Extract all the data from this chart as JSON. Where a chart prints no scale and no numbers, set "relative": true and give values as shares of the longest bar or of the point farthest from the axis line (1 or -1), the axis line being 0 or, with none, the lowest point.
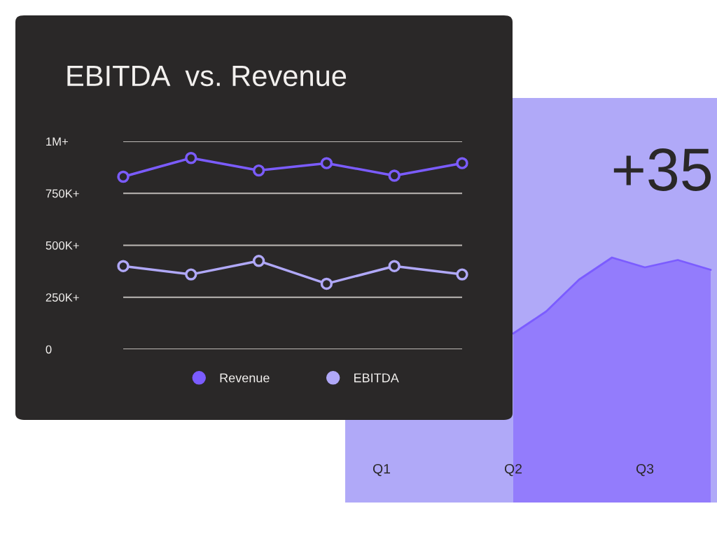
{
  "chart_data": [
    {
      "type": "line",
      "title": "EBITDA  vs. Revenue",
      "categories": [
        null,
        null,
        null,
        null,
        null,
        null
      ],
      "series": [
        {
          "name": "Revenue",
          "color": "#7b5cff",
          "values": [
            830000,
            920000,
            860000,
            895000,
            835000,
            895000
          ]
        },
        {
          "name": "EBITDA",
          "color": "#b0a8f8",
          "values": [
            400000,
            360000,
            425000,
            315000,
            400000,
            360000
          ]
        }
      ],
      "ylim": [
        0,
        1000000
      ],
      "yticks": [
        0,
        {
          "value": 250000,
          "label": "250K+"
        },
        {
          "value": 500000,
          "label": "500K+"
        },
        {
          "value": 750000,
          "label": "750K+"
        },
        {
          "value": 1000000,
          "label": "1M+"
        }
      ],
      "grid": "y",
      "legend": "bottom",
      "marker": "circle",
      "line_style": "solid",
      "tick_labels": "y"
    },
    {
      "type": "area",
      "relative": true,
      "categories": [
        "Q1",
        null,
        null,
        null,
        "Q2",
        null,
        null,
        null,
        "Q3",
        null,
        null
      ],
      "series": [
        {
          "color": "#8a6dfd",
          "values": [
            null,
            null,
            null,
            null,
            0.69,
            0.78,
            0.91,
            1.0,
            0.96,
            0.99,
            0.95
          ]
        }
      ],
      "annotations": [
        "+35"
      ],
      "tick_labels": "x"
    }
  ]
}
